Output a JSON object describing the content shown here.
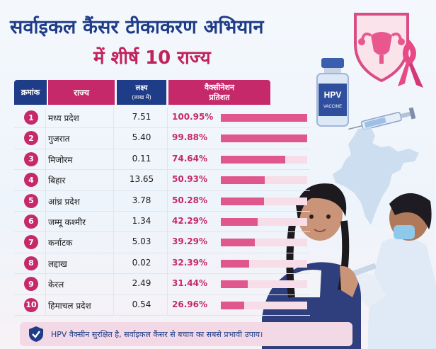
{
  "title": {
    "line1": "सर्वाइकल कैंसर टीकाकरण अभियान",
    "line2": "में शीर्ष 10 राज्य"
  },
  "table": {
    "headers": {
      "serial": "क्रमांक",
      "state": "राज्य",
      "target": "लक्ष्य",
      "target_unit": "(लाख में)",
      "percent_line1": "वैक्सीनेशन",
      "percent_line2": "प्रतिशत"
    },
    "rows": [
      {
        "rank": "1",
        "state": "मध्य प्रदेश",
        "target": "7.51",
        "percent": "100.95%",
        "value": 100.95
      },
      {
        "rank": "2",
        "state": "गुजरात",
        "target": "5.40",
        "percent": "99.88%",
        "value": 99.88
      },
      {
        "rank": "3",
        "state": "मिजोरम",
        "target": "0.11",
        "percent": "74.64%",
        "value": 74.64
      },
      {
        "rank": "4",
        "state": "बिहार",
        "target": "13.65",
        "percent": "50.93%",
        "value": 50.93
      },
      {
        "rank": "5",
        "state": "आंध्र प्रदेश",
        "target": "3.78",
        "percent": "50.28%",
        "value": 50.28
      },
      {
        "rank": "6",
        "state": "जम्मू कश्मीर",
        "target": "1.34",
        "percent": "42.29%",
        "value": 42.29
      },
      {
        "rank": "7",
        "state": "कर्नाटक",
        "target": "5.03",
        "percent": "39.29%",
        "value": 39.29
      },
      {
        "rank": "8",
        "state": "लद्दाख",
        "target": "0.02",
        "percent": "32.39%",
        "value": 32.39
      },
      {
        "rank": "9",
        "state": "केरल",
        "target": "2.49",
        "percent": "31.44%",
        "value": 31.44
      },
      {
        "rank": "10",
        "state": "हिमाचल प्रदेश",
        "target": "0.54",
        "percent": "26.96%",
        "value": 26.96
      }
    ]
  },
  "vial_label": {
    "brand": "HPV",
    "sub": "VACCINE"
  },
  "footer": {
    "text": "HPV वैक्सीन सुरक्षित है, सर्वाइकल कैंसर से बचाव का सबसे प्रभावी उपाय।"
  },
  "colors": {
    "navy": "#1f3c88",
    "pink": "#c6296a",
    "bar": "#e0578d",
    "bar_track": "#f6dde8"
  },
  "icons": [
    "uterus-shield-icon",
    "pink-ribbon-icon",
    "vaccine-vial-icon",
    "syringe-icon",
    "india-map-icon",
    "check-shield-icon"
  ]
}
